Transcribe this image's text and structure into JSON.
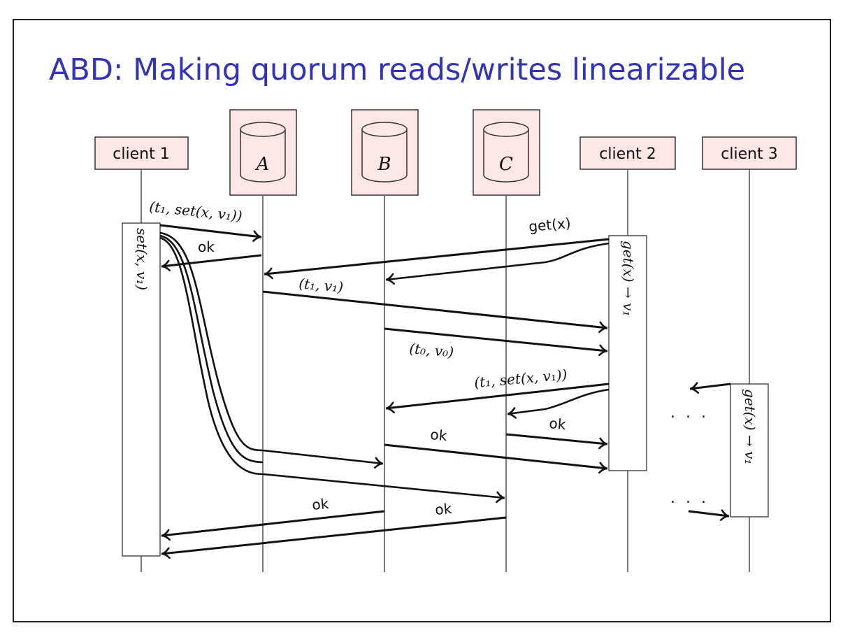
{
  "title": "ABD: Making quorum reads/writes linearizable",
  "participants": {
    "client1": "client 1",
    "replicaA": "A",
    "replicaB": "B",
    "replicaC": "C",
    "client2": "client 2",
    "client3": "client 3"
  },
  "activations": {
    "client1": "set(x, v₁)",
    "client2": "get(x) → v₁",
    "client3": "get(x) → v₁"
  },
  "messages": {
    "write_to_A": "(t₁, set(x, v₁))",
    "ok_A": "ok",
    "get": "get(x)",
    "reply_A": "(t₁, v₁)",
    "reply_B": "(t₀, v₀)",
    "writeback": "(t₁, set(x, v₁))",
    "ok_C_to_client2": "ok",
    "ok_B_to_client2": "ok",
    "ok_B_to_client1": "ok",
    "ok_C_to_client1": "ok"
  },
  "ellipsis": {
    "upper": ". . .",
    "lower": ". . ."
  },
  "colors": {
    "title": "#3333b3",
    "box_fill": "#fde6e6",
    "line": "#111111"
  }
}
